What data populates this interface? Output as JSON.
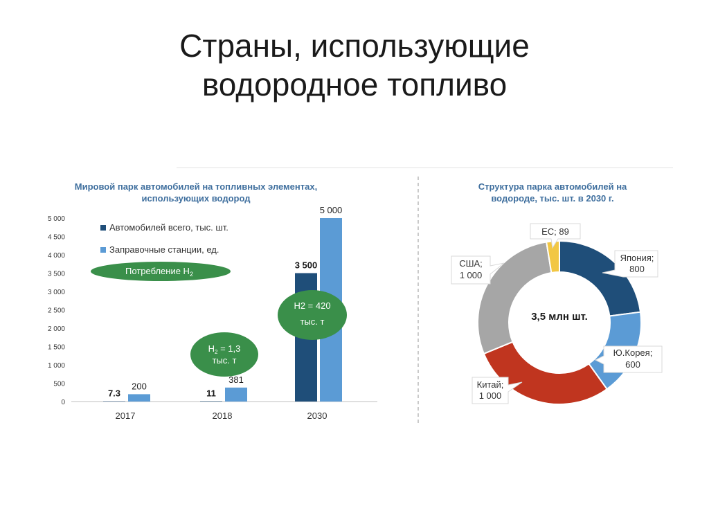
{
  "slide": {
    "title_line1": "Страны, использующие",
    "title_line2": "водородное топливо"
  },
  "annotations": {
    "h2_2018_line1": "H",
    "h2_2018_sub": "2",
    "h2_2018_line1_rest": " = 1,3",
    "h2_2018_line2": "тыс. т",
    "h2_2030_line1": "H2 = 420",
    "h2_2030_line2": "тыс. т",
    "consumption_label": "Потребление H",
    "consumption_sub": "2",
    "pie_center": "3,5 млн шт."
  },
  "colors": {
    "series_cars": "#1f4e79",
    "series_stations": "#5b9bd5",
    "ellipse_green": "#3a8f4a",
    "japan": "#1f4e79",
    "korea": "#5b9bd5",
    "china": "#c0351f",
    "usa": "#a6a6a6",
    "eu": "#f2c744"
  },
  "chart_data": [
    {
      "type": "bar",
      "title_line1": "Мировой парк автомобилей на топливных элементах,",
      "title_line2": "использующих водород",
      "categories": [
        "2017",
        "2018",
        "2030"
      ],
      "series": [
        {
          "name": "Автомобилей всего, тыс. шт.",
          "values": [
            7.3,
            11,
            3500
          ],
          "labels": [
            "7.3",
            "11",
            "3 500"
          ]
        },
        {
          "name": "Заправочные станции, ед.",
          "values": [
            200,
            381,
            5000
          ],
          "labels": [
            "200",
            "381",
            "5 000"
          ]
        }
      ],
      "ylim": [
        0,
        5000
      ],
      "yticks": [
        "0",
        "500",
        "1 000",
        "1 500",
        "2 000",
        "2 500",
        "3 000",
        "3 500",
        "4 000",
        "4 500",
        "5 000"
      ],
      "ytick_values": [
        0,
        500,
        1000,
        1500,
        2000,
        2500,
        3000,
        3500,
        4000,
        4500,
        5000
      ],
      "legend": "top-left",
      "grid": false
    },
    {
      "type": "pie",
      "title_line1": "Структура парка автомобилей на",
      "title_line2": "водороде, тыс. шт. в 2030 г.",
      "slices": [
        {
          "name": "Япония",
          "value": 800,
          "label_line1": "Япония;",
          "label_line2": "800"
        },
        {
          "name": "Ю.Корея",
          "value": 600,
          "label_line1": "Ю.Корея;",
          "label_line2": "600"
        },
        {
          "name": "Китай",
          "value": 1000,
          "label_line1": "Китай;",
          "label_line2": "1 000"
        },
        {
          "name": "США",
          "value": 1000,
          "label_line1": "США;",
          "label_line2": "1 000"
        },
        {
          "name": "ЕС",
          "value": 89,
          "label_line1": "ЕС;",
          "label_line2": "89"
        }
      ]
    }
  ]
}
